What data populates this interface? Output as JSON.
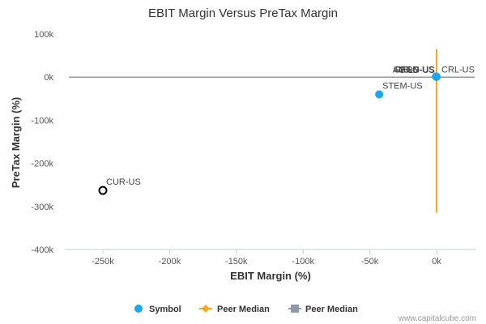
{
  "chart_data": {
    "type": "scatter",
    "title": "EBIT Margin Versus PreTax Margin",
    "xlabel": "EBIT Margin (%)",
    "ylabel": "PreTax Margin (%)",
    "xlim": [
      -275000,
      30000
    ],
    "ylim": [
      -400000,
      100000
    ],
    "x_ticks": [
      {
        "value": -250000,
        "label": "-250k"
      },
      {
        "value": -200000,
        "label": "-200k"
      },
      {
        "value": -150000,
        "label": "-150k"
      },
      {
        "value": -100000,
        "label": "-100k"
      },
      {
        "value": -50000,
        "label": "-50k"
      },
      {
        "value": 0,
        "label": "0k"
      }
    ],
    "y_ticks": [
      {
        "value": 100000,
        "label": "100k"
      },
      {
        "value": 0,
        "label": "0k"
      },
      {
        "value": -100000,
        "label": "-100k"
      },
      {
        "value": -200000,
        "label": "-200k"
      },
      {
        "value": -300000,
        "label": "-300k"
      },
      {
        "value": -400000,
        "label": "-400k"
      }
    ],
    "points": [
      {
        "label": "CUR-US",
        "x": -250000,
        "y": -263000,
        "kind": "subject"
      },
      {
        "label": "STEM-US",
        "x": -43000,
        "y": -40000,
        "kind": "peer"
      },
      {
        "label": "CRL-US",
        "x": 0,
        "y": 1000,
        "kind": "peer",
        "label_side": "right"
      },
      {
        "label": "GERN-US",
        "x": -500,
        "y": 1500,
        "kind": "peer",
        "label_side": "left"
      },
      {
        "label": "CELG-US",
        "x": -300,
        "y": 1200,
        "kind": "peer",
        "label_side": "left"
      },
      {
        "label": "AMGN-US",
        "x": -200,
        "y": 900,
        "kind": "peer",
        "label_side": "left"
      },
      {
        "label": "GILD-US",
        "x": -100,
        "y": 600,
        "kind": "peer",
        "label_side": "left"
      }
    ],
    "peer_median": {
      "x": 0,
      "y": 0,
      "x_span": [
        -275000,
        30000
      ],
      "y_span": [
        -315000,
        65000
      ]
    },
    "legend": {
      "position": "bottom",
      "items": [
        {
          "name": "Symbol",
          "symbol": "circle",
          "color": "#1aa7ec"
        },
        {
          "name": "Peer Median",
          "symbol": "diamond-line",
          "color": "#f5a623"
        },
        {
          "name": "Peer Median",
          "symbol": "square-line",
          "color": "#8d9aaa"
        }
      ]
    },
    "colors": {
      "symbol": "#1aa7ec",
      "subject_stroke": "#000000",
      "median_vertical": "#f5a623",
      "median_horizontal": "#8d9aaa",
      "axis": "#c0d0e0"
    },
    "credit": "www.capitalcube.com"
  }
}
